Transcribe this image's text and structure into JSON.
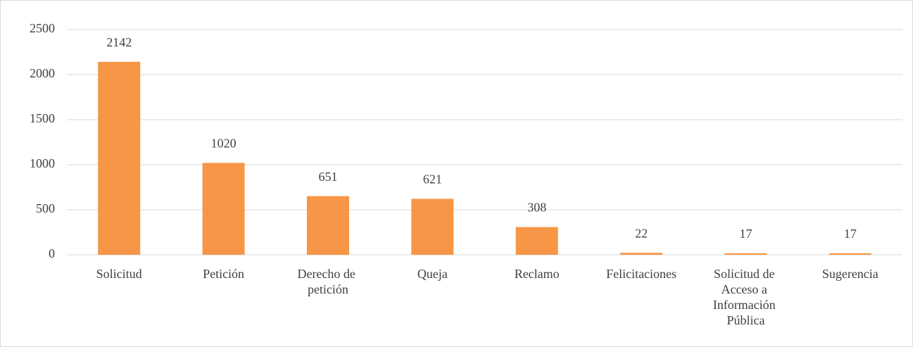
{
  "chart_data": {
    "type": "bar",
    "categories": [
      "Solicitud",
      "Petición",
      "Derecho de petición",
      "Queja",
      "Reclamo",
      "Felicitaciones",
      "Solicitud de Acceso a Información Pública",
      "Sugerencia"
    ],
    "values": [
      2142,
      1020,
      651,
      621,
      308,
      22,
      17,
      17
    ],
    "color": "#f79646",
    "ylim": [
      0,
      2500
    ],
    "yticks": [
      0,
      500,
      1000,
      1500,
      2000,
      2500
    ],
    "grid": true
  }
}
